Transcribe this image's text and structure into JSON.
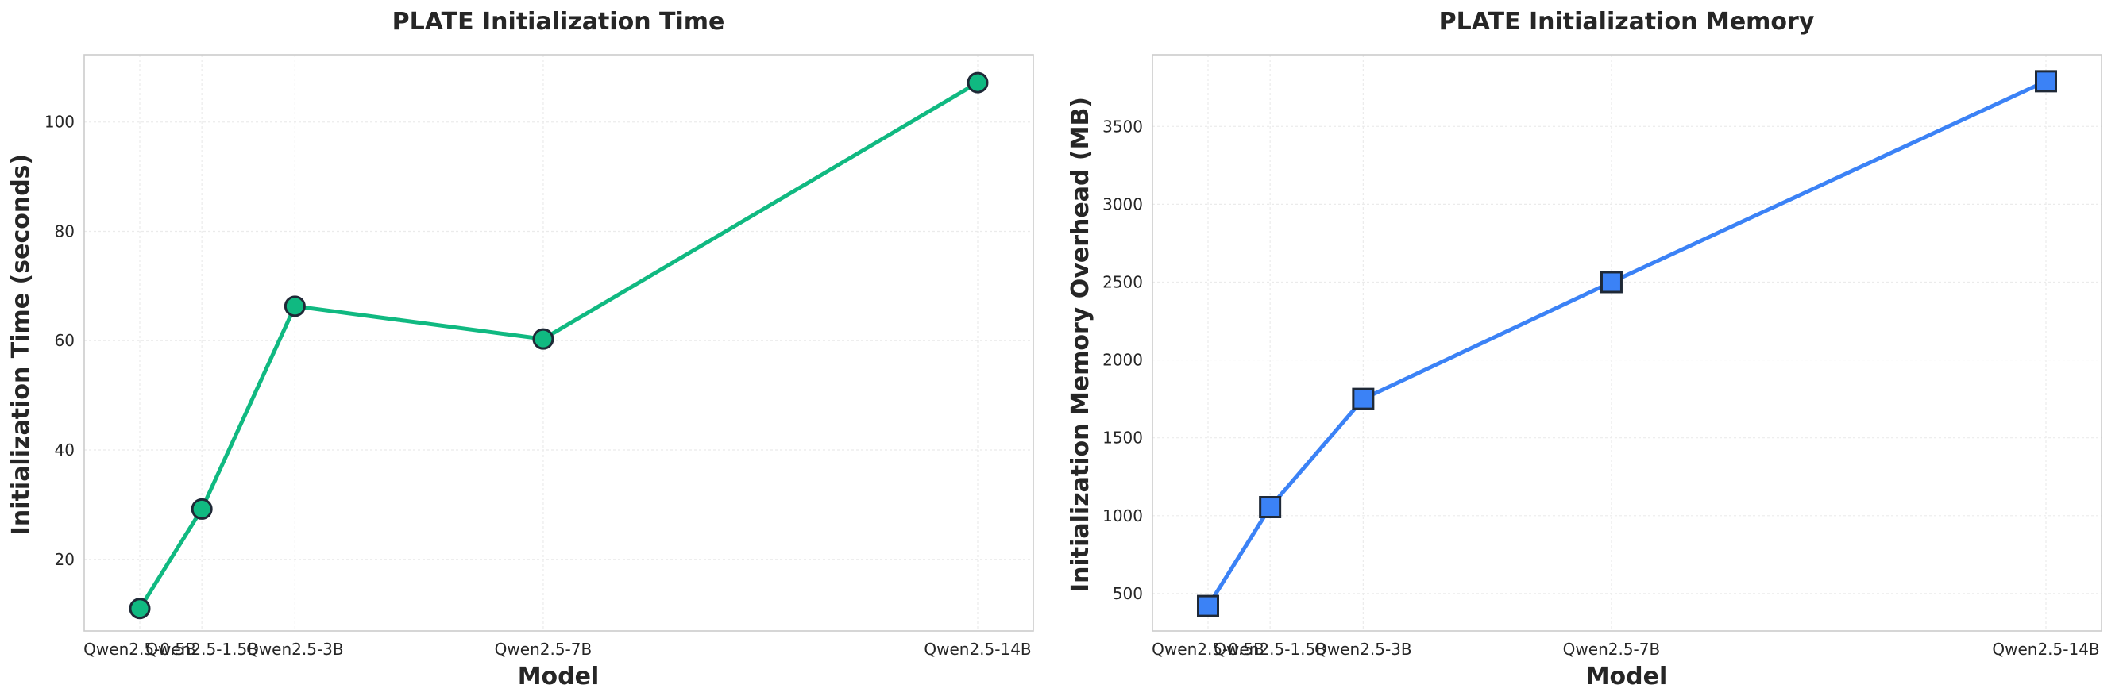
{
  "chart_data": [
    {
      "type": "line",
      "title": "PLATE Initialization Time",
      "xlabel": "Model",
      "ylabel": "Initialization Time (seconds)",
      "x": [
        0.5,
        1.5,
        3,
        7,
        14
      ],
      "categories": [
        "Qwen2.5-0.5B",
        "Qwen2.5-1.5B",
        "Qwen2.5-3B",
        "Qwen2.5-7B",
        "Qwen2.5-14B"
      ],
      "values": [
        11.0,
        29.2,
        66.3,
        60.3,
        107.2
      ],
      "ylim": [
        6.9,
        112.3
      ],
      "yticks": [
        20,
        40,
        60,
        80,
        100
      ],
      "color": "#10b981",
      "marker": "circle",
      "grid": true
    },
    {
      "type": "line",
      "title": "PLATE Initialization Memory",
      "xlabel": "Model",
      "ylabel": "Initialization Memory Overhead (MB)",
      "x": [
        0.5,
        1.5,
        3,
        7,
        14
      ],
      "categories": [
        "Qwen2.5-0.5B",
        "Qwen2.5-1.5B",
        "Qwen2.5-3B",
        "Qwen2.5-7B",
        "Qwen2.5-14B"
      ],
      "values": [
        420,
        1055,
        1750,
        2500,
        3790
      ],
      "ylim": [
        260,
        3960
      ],
      "yticks": [
        500,
        1000,
        1500,
        2000,
        2500,
        3000,
        3500
      ],
      "color": "#3b82f6",
      "marker": "square",
      "grid": true
    }
  ]
}
